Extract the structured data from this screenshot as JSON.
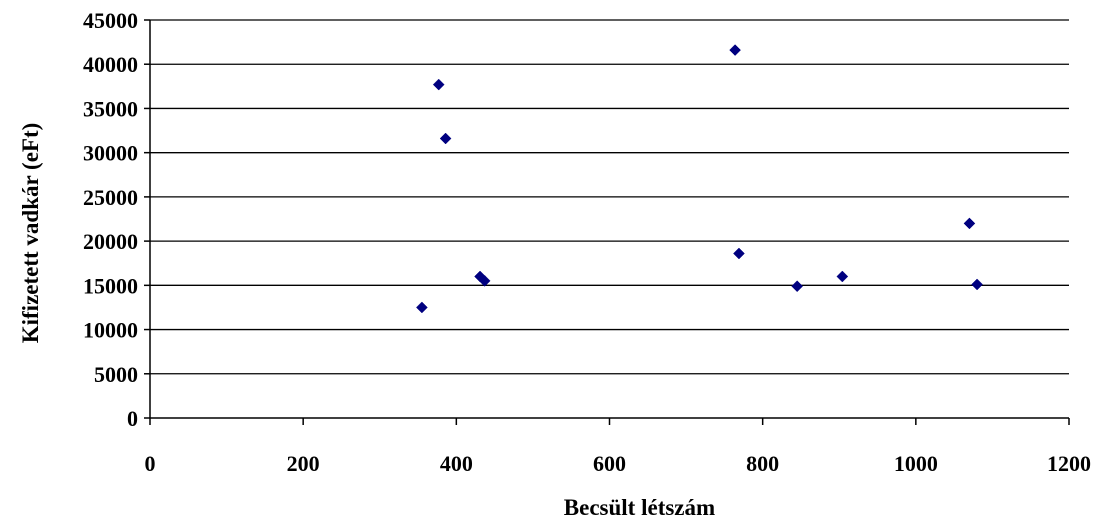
{
  "chart_data": {
    "type": "scatter",
    "title": "",
    "xlabel": "Becsült létszám",
    "ylabel": "Kifizetett vadkár (eFt)",
    "xlim": [
      0,
      1200
    ],
    "ylim": [
      0,
      45000
    ],
    "x_ticks": [
      0,
      200,
      400,
      600,
      800,
      1000,
      1200
    ],
    "y_ticks": [
      0,
      5000,
      10000,
      15000,
      20000,
      25000,
      30000,
      35000,
      40000,
      45000
    ],
    "x_tick_labels": [
      "0",
      "200",
      "400",
      "600",
      "800",
      "1000",
      "1200"
    ],
    "y_tick_labels": [
      "0",
      "5000",
      "10000",
      "15000",
      "20000",
      "25000",
      "30000",
      "35000",
      "40000",
      "45000"
    ],
    "grid": "horizontal",
    "legend": "none",
    "marker": "diamond",
    "marker_color": "#000080",
    "points": [
      {
        "x": 355,
        "y": 12500
      },
      {
        "x": 377,
        "y": 37700
      },
      {
        "x": 386,
        "y": 31600
      },
      {
        "x": 431,
        "y": 16000
      },
      {
        "x": 437,
        "y": 15500
      },
      {
        "x": 764,
        "y": 41600
      },
      {
        "x": 769,
        "y": 18600
      },
      {
        "x": 845,
        "y": 14900
      },
      {
        "x": 904,
        "y": 16000
      },
      {
        "x": 1070,
        "y": 22000
      },
      {
        "x": 1080,
        "y": 15100
      }
    ]
  }
}
